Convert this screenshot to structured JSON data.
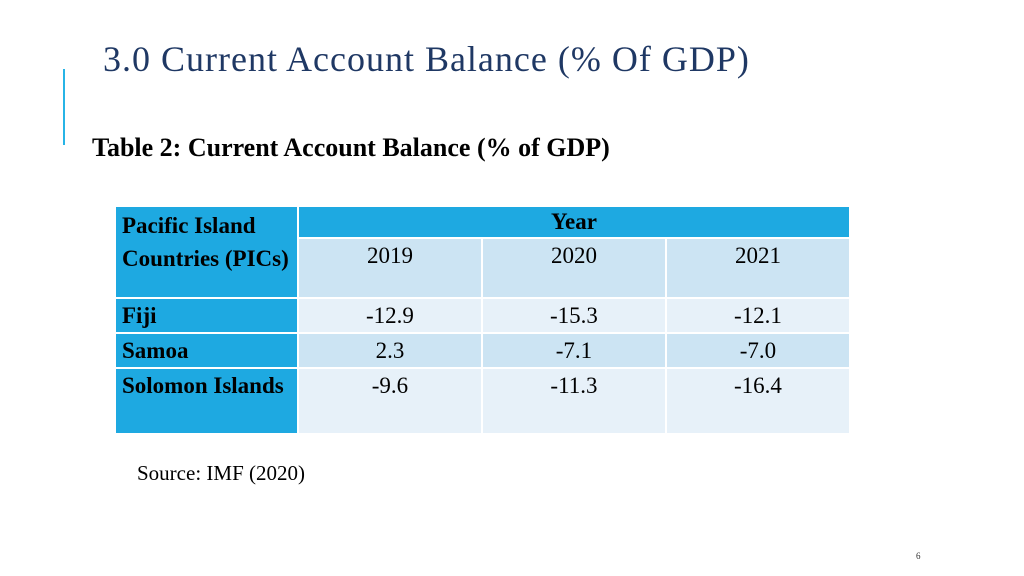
{
  "slide": {
    "title": "3.0 Current Account Balance (% Of GDP)",
    "page_number": "6"
  },
  "table": {
    "caption": "Table 2: Current Account Balance (% of GDP)",
    "first_header": "Pacific Island Countries (PICs)",
    "year_header": "Year",
    "years": [
      "2019",
      "2020",
      "2021"
    ],
    "rows": [
      {
        "country": "Fiji",
        "values": [
          "-12.9",
          "-15.3",
          "-12.1"
        ]
      },
      {
        "country": "Samoa",
        "values": [
          "2.3",
          "-7.1",
          "-7.0"
        ]
      },
      {
        "country": "Solomon Islands",
        "values": [
          "-9.6",
          "-11.3",
          "-16.4"
        ]
      }
    ]
  },
  "source": "Source: IMF (2020)",
  "colors": {
    "accent": "#27b4e6",
    "header_fill": "#1ea9e1",
    "title_text": "#1f3864",
    "cell_light": "#e7f1f9",
    "cell_medium": "#cce4f3"
  }
}
